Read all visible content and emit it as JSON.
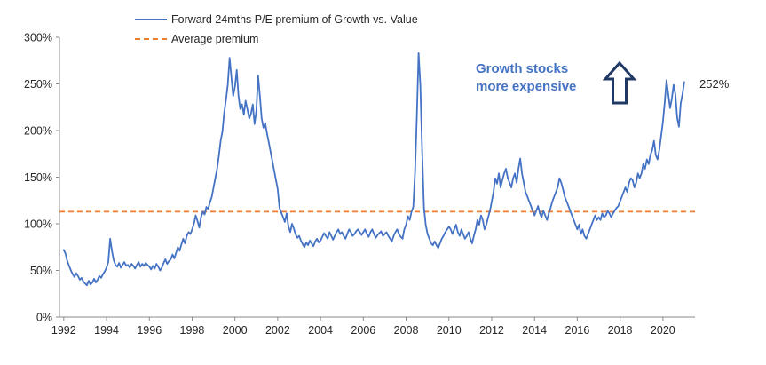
{
  "chart_data": {
    "type": "line",
    "title": "",
    "xlabel": "",
    "ylabel": "",
    "unit": "%",
    "ylim": [
      0,
      300
    ],
    "y_ticks": [
      0,
      50,
      100,
      150,
      200,
      250,
      300
    ],
    "x_ticks": [
      1992,
      1994,
      1996,
      1998,
      2000,
      2002,
      2004,
      2006,
      2008,
      2010,
      2012,
      2014,
      2016,
      2018,
      2020
    ],
    "x_range": [
      1991.8,
      2021.5
    ],
    "grid": false,
    "legend_position": "top-left",
    "end_label": "252%",
    "annotation": {
      "line1": "Growth stocks",
      "line2": "more expensive",
      "color": "#4472C4",
      "arrow_icon": "up-block-arrow",
      "arrow_color": "#1F3864"
    },
    "series": [
      {
        "name": "Forward 24mths P/E premium of Growth vs. Value",
        "color": "#4472C4",
        "style": "solid",
        "start_year": 1992,
        "frequency": "monthly",
        "values": [
          72,
          68,
          60,
          55,
          50,
          46,
          43,
          47,
          44,
          40,
          42,
          38,
          36,
          34,
          39,
          35,
          37,
          41,
          37,
          40,
          44,
          42,
          46,
          49,
          53,
          59,
          84,
          71,
          61,
          56,
          54,
          58,
          53,
          56,
          59,
          55,
          56,
          53,
          57,
          55,
          52,
          56,
          59,
          54,
          57,
          55,
          58,
          56,
          54,
          51,
          55,
          52,
          57,
          54,
          50,
          53,
          58,
          62,
          57,
          60,
          62,
          67,
          63,
          69,
          75,
          71,
          78,
          84,
          79,
          87,
          91,
          89,
          94,
          100,
          109,
          103,
          96,
          107,
          113,
          110,
          118,
          116,
          123,
          129,
          139,
          149,
          159,
          173,
          189,
          199,
          219,
          233,
          249,
          278,
          257,
          237,
          247,
          265,
          237,
          223,
          228,
          217,
          232,
          223,
          213,
          218,
          228,
          207,
          221,
          259,
          237,
          213,
          203,
          208,
          197,
          187,
          177,
          167,
          157,
          147,
          137,
          117,
          112,
          107,
          102,
          111,
          97,
          91,
          100,
          95,
          89,
          85,
          87,
          82,
          78,
          75,
          80,
          77,
          82,
          79,
          76,
          81,
          84,
          80,
          82,
          86,
          90,
          87,
          84,
          91,
          87,
          83,
          87,
          91,
          94,
          89,
          91,
          87,
          84,
          89,
          94,
          91,
          87,
          89,
          92,
          94,
          91,
          88,
          91,
          94,
          89,
          86,
          91,
          94,
          89,
          85,
          88,
          90,
          92,
          87,
          89,
          91,
          87,
          84,
          81,
          87,
          91,
          94,
          89,
          86,
          84,
          94,
          99,
          108,
          104,
          113,
          118,
          155,
          215,
          283,
          248,
          178,
          118,
          99,
          89,
          84,
          79,
          77,
          81,
          77,
          74,
          79,
          84,
          87,
          91,
          94,
          97,
          94,
          89,
          94,
          99,
          91,
          87,
          94,
          89,
          84,
          87,
          91,
          84,
          79,
          87,
          94,
          104,
          99,
          109,
          104,
          94,
          99,
          107,
          114,
          124,
          134,
          149,
          143,
          154,
          139,
          147,
          154,
          159,
          149,
          144,
          139,
          149,
          154,
          144,
          159,
          170,
          154,
          144,
          134,
          129,
          124,
          119,
          114,
          109,
          114,
          119,
          111,
          107,
          114,
          109,
          104,
          111,
          117,
          124,
          129,
          134,
          139,
          149,
          144,
          137,
          129,
          124,
          119,
          114,
          109,
          104,
          99,
          94,
          99,
          89,
          94,
          87,
          84,
          89,
          94,
          99,
          104,
          109,
          104,
          107,
          104,
          111,
          107,
          109,
          114,
          111,
          107,
          111,
          114,
          117,
          119,
          124,
          129,
          134,
          139,
          134,
          144,
          149,
          147,
          139,
          144,
          154,
          149,
          154,
          164,
          159,
          169,
          164,
          174,
          179,
          189,
          174,
          169,
          179,
          194,
          209,
          229,
          254,
          239,
          224,
          234,
          249,
          239,
          214,
          204,
          229,
          239,
          252
        ]
      },
      {
        "name": "Average premium",
        "color": "#ED7D31",
        "style": "dashed",
        "value": 113
      }
    ]
  }
}
